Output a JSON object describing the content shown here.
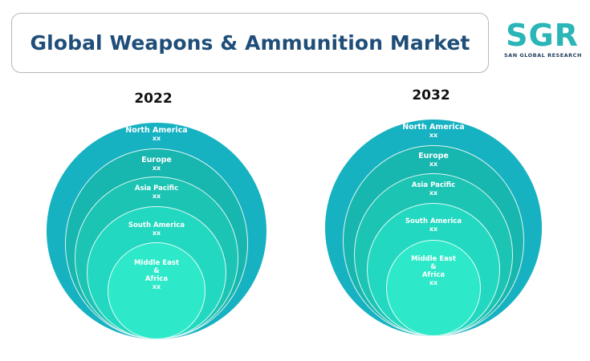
{
  "header": {
    "title": "Global Weapons & Ammunition Market"
  },
  "logo": {
    "letters": "SGR",
    "tagline": "SAN GLOBAL RESEARCH",
    "color": "#2ab5b7"
  },
  "colors": {
    "ring1": "#16b2c2",
    "ring2": "#17b6ae",
    "ring3": "#1cc4b4",
    "ring4": "#22d8c0",
    "ring5": "#2ee9c9"
  },
  "diagrams": [
    {
      "year": "2022",
      "segments": [
        {
          "name": "North America",
          "value": "xx"
        },
        {
          "name": "Europe",
          "value": "xx"
        },
        {
          "name": "Asia Pacific",
          "value": "xx"
        },
        {
          "name": "South America",
          "value": "xx"
        },
        {
          "name": "Middle East",
          "amp": "&",
          "name2": "Africa",
          "value": "xx"
        }
      ]
    },
    {
      "year": "2032",
      "segments": [
        {
          "name": "North America",
          "value": "xx"
        },
        {
          "name": "Europe",
          "value": "xx"
        },
        {
          "name": "Asia Pacific",
          "value": "xx"
        },
        {
          "name": "South America",
          "value": "xx"
        },
        {
          "name": "Middle East",
          "amp": "&",
          "name2": "Africa",
          "value": "xx"
        }
      ]
    }
  ]
}
